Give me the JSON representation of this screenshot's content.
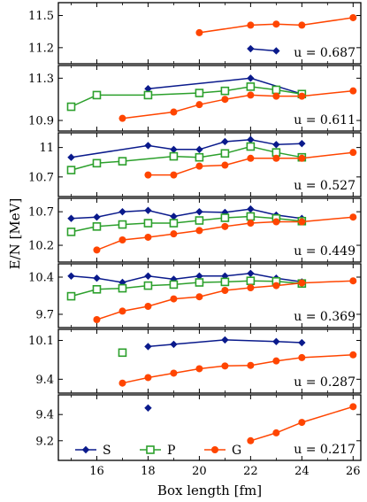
{
  "chart_data": {
    "type": "line",
    "xlabel": "Box length [fm]",
    "ylabel": "E/N [MeV]",
    "xlim": [
      14.5,
      26.3
    ],
    "x_ticks": [
      16,
      18,
      20,
      22,
      24,
      26
    ],
    "legend": {
      "placement": "bottom-left",
      "entries": [
        "S",
        "P",
        "G"
      ]
    },
    "series_styles": [
      {
        "name": "S",
        "color": "#0a1a8c",
        "marker": "diamond-filled"
      },
      {
        "name": "P",
        "color": "#2ca02c",
        "marker": "square-open"
      },
      {
        "name": "G",
        "color": "#ff4500",
        "marker": "circle-filled"
      }
    ],
    "panels": [
      {
        "annotation": "u = 0.687",
        "ylim": [
          11.05,
          11.62
        ],
        "y_ticks": [
          11.2,
          11.5
        ],
        "series": [
          {
            "name": "S",
            "points": [
              [
                22,
                11.19
              ],
              [
                23,
                11.17
              ]
            ]
          },
          {
            "name": "P",
            "points": []
          },
          {
            "name": "G",
            "points": [
              [
                20,
                11.34
              ],
              [
                22,
                11.41
              ],
              [
                23,
                11.42
              ],
              [
                24,
                11.41
              ],
              [
                26,
                11.48
              ]
            ]
          }
        ]
      },
      {
        "annotation": "u = 0.611",
        "ylim": [
          10.8,
          11.42
        ],
        "y_ticks": [
          10.9,
          11.3
        ],
        "series": [
          {
            "name": "S",
            "points": [
              [
                18,
                11.2
              ],
              [
                22,
                11.3
              ],
              [
                24,
                11.15
              ]
            ]
          },
          {
            "name": "P",
            "points": [
              [
                15,
                11.03
              ],
              [
                16,
                11.14
              ],
              [
                18,
                11.14
              ],
              [
                20,
                11.16
              ],
              [
                21,
                11.18
              ],
              [
                22,
                11.22
              ],
              [
                23,
                11.19
              ],
              [
                24,
                11.15
              ]
            ]
          },
          {
            "name": "G",
            "points": [
              [
                17,
                10.92
              ],
              [
                19,
                10.98
              ],
              [
                20,
                11.05
              ],
              [
                21,
                11.1
              ],
              [
                22,
                11.14
              ],
              [
                23,
                11.13
              ],
              [
                24,
                11.13
              ],
              [
                26,
                11.18
              ]
            ]
          }
        ]
      },
      {
        "annotation": "u = 0.527",
        "ylim": [
          10.5,
          11.15
        ],
        "y_ticks": [
          10.7,
          11
        ],
        "series": [
          {
            "name": "S",
            "points": [
              [
                15,
                10.9
              ],
              [
                18,
                11.02
              ],
              [
                19,
                10.98
              ],
              [
                20,
                10.98
              ],
              [
                21,
                11.06
              ],
              [
                22,
                11.08
              ],
              [
                23,
                11.03
              ],
              [
                24,
                11.04
              ]
            ]
          },
          {
            "name": "P",
            "points": [
              [
                15,
                10.77
              ],
              [
                16,
                10.84
              ],
              [
                17,
                10.86
              ],
              [
                19,
                10.91
              ],
              [
                20,
                10.9
              ],
              [
                21,
                10.94
              ],
              [
                22,
                11.01
              ],
              [
                23,
                10.95
              ],
              [
                24,
                10.9
              ]
            ]
          },
          {
            "name": "G",
            "points": [
              [
                18,
                10.72
              ],
              [
                19,
                10.72
              ],
              [
                20,
                10.81
              ],
              [
                21,
                10.82
              ],
              [
                22,
                10.89
              ],
              [
                23,
                10.89
              ],
              [
                24,
                10.89
              ],
              [
                26,
                10.95
              ]
            ]
          }
        ]
      },
      {
        "annotation": "u = 0.449",
        "ylim": [
          9.95,
          10.9
        ],
        "y_ticks": [
          10.2,
          10.7
        ],
        "series": [
          {
            "name": "S",
            "points": [
              [
                15,
                10.6
              ],
              [
                16,
                10.62
              ],
              [
                17,
                10.7
              ],
              [
                18,
                10.72
              ],
              [
                19,
                10.63
              ],
              [
                20,
                10.7
              ],
              [
                21,
                10.69
              ],
              [
                22,
                10.74
              ],
              [
                23,
                10.65
              ],
              [
                24,
                10.6
              ]
            ]
          },
          {
            "name": "P",
            "points": [
              [
                15,
                10.4
              ],
              [
                16,
                10.48
              ],
              [
                17,
                10.51
              ],
              [
                18,
                10.53
              ],
              [
                19,
                10.53
              ],
              [
                20,
                10.57
              ],
              [
                21,
                10.61
              ],
              [
                22,
                10.63
              ],
              [
                23,
                10.6
              ],
              [
                24,
                10.56
              ]
            ]
          },
          {
            "name": "G",
            "points": [
              [
                16,
                10.13
              ],
              [
                17,
                10.28
              ],
              [
                18,
                10.32
              ],
              [
                19,
                10.37
              ],
              [
                20,
                10.42
              ],
              [
                21,
                10.48
              ],
              [
                22,
                10.53
              ],
              [
                23,
                10.55
              ],
              [
                24,
                10.55
              ],
              [
                26,
                10.62
              ]
            ]
          }
        ]
      },
      {
        "annotation": "u = 0.369",
        "ylim": [
          9.45,
          10.65
        ],
        "y_ticks": [
          9.7,
          10.4
        ],
        "series": [
          {
            "name": "S",
            "points": [
              [
                15,
                10.42
              ],
              [
                16,
                10.38
              ],
              [
                17,
                10.3
              ],
              [
                18,
                10.42
              ],
              [
                19,
                10.36
              ],
              [
                20,
                10.42
              ],
              [
                21,
                10.42
              ],
              [
                22,
                10.47
              ],
              [
                23,
                10.38
              ],
              [
                24,
                10.31
              ]
            ]
          },
          {
            "name": "P",
            "points": [
              [
                15,
                10.04
              ],
              [
                16,
                10.17
              ],
              [
                17,
                10.19
              ],
              [
                18,
                10.24
              ],
              [
                19,
                10.26
              ],
              [
                20,
                10.3
              ],
              [
                21,
                10.31
              ],
              [
                22,
                10.33
              ],
              [
                23,
                10.32
              ],
              [
                24,
                10.28
              ]
            ]
          },
          {
            "name": "G",
            "points": [
              [
                16,
                9.6
              ],
              [
                17,
                9.76
              ],
              [
                18,
                9.85
              ],
              [
                19,
                9.99
              ],
              [
                20,
                10.03
              ],
              [
                21,
                10.15
              ],
              [
                22,
                10.2
              ],
              [
                23,
                10.24
              ],
              [
                24,
                10.29
              ],
              [
                26,
                10.33
              ]
            ]
          }
        ]
      },
      {
        "annotation": "u = 0.287",
        "ylim": [
          9.15,
          10.3
        ],
        "y_ticks": [
          9.4,
          10.1
        ],
        "series": [
          {
            "name": "S",
            "points": [
              [
                18,
                9.99
              ],
              [
                19,
                10.03
              ],
              [
                21,
                10.11
              ],
              [
                23,
                10.08
              ],
              [
                24,
                10.06
              ]
            ]
          },
          {
            "name": "P",
            "points": [
              [
                17,
                9.88
              ]
            ]
          },
          {
            "name": "G",
            "points": [
              [
                17,
                9.33
              ],
              [
                18,
                9.43
              ],
              [
                19,
                9.51
              ],
              [
                20,
                9.59
              ],
              [
                21,
                9.64
              ],
              [
                22,
                9.65
              ],
              [
                23,
                9.73
              ],
              [
                24,
                9.79
              ],
              [
                26,
                9.84
              ]
            ]
          }
        ]
      },
      {
        "annotation": "u = 0.217",
        "ylim": [
          9.05,
          9.55
        ],
        "y_ticks": [
          9.2,
          9.4
        ],
        "series": [
          {
            "name": "S",
            "points": [
              [
                18,
                9.45
              ]
            ]
          },
          {
            "name": "P",
            "points": []
          },
          {
            "name": "G",
            "points": [
              [
                22,
                9.2
              ],
              [
                23,
                9.26
              ],
              [
                24,
                9.34
              ],
              [
                26,
                9.46
              ]
            ]
          }
        ]
      }
    ]
  }
}
